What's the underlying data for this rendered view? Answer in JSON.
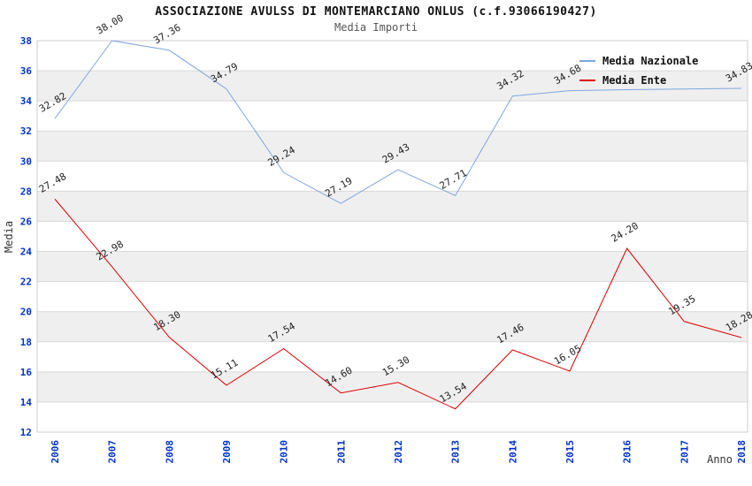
{
  "header": {
    "title": "ASSOCIAZIONE AVULSS DI MONTEMARCIANO ONLUS (c.f.93066190427)",
    "subtitle": "Media Importi"
  },
  "legend": {
    "items": [
      {
        "label": "Media Nazionale",
        "color": "#7EA6E0"
      },
      {
        "label": "Media Ente",
        "color": "#DD0000"
      }
    ]
  },
  "chart_data": {
    "type": "line",
    "x": [
      2006,
      2007,
      2008,
      2009,
      2010,
      2011,
      2012,
      2013,
      2014,
      2015,
      2016,
      2017,
      2018
    ],
    "series": [
      {
        "name": "Media Nazionale",
        "color": "#7EA6E0",
        "values": [
          32.82,
          38.0,
          37.36,
          34.79,
          29.24,
          27.19,
          29.43,
          27.71,
          34.32,
          34.68,
          34.74,
          34.79,
          34.83
        ],
        "labels": [
          "32.82",
          "38.00",
          "37.36",
          "34.79",
          "29.24",
          "27.19",
          "29.43",
          "27.71",
          "34.32",
          "34.68",
          "",
          "",
          "34.83"
        ]
      },
      {
        "name": "Media Ente",
        "color": "#DD0000",
        "values": [
          27.48,
          22.98,
          18.3,
          15.11,
          17.54,
          14.6,
          15.3,
          13.54,
          17.46,
          16.05,
          24.2,
          19.35,
          18.28
        ],
        "labels": [
          "27.48",
          "22.98",
          "18.30",
          "15.11",
          "17.54",
          "14.60",
          "15.30",
          "13.54",
          "17.46",
          "16.05",
          "24.20",
          "19.35",
          "18.28"
        ]
      }
    ],
    "xlabel": "Anno",
    "ylabel": "Media",
    "ylim": [
      12,
      38
    ],
    "ytick_step": 2,
    "legend_position": "top-right",
    "grid": true,
    "styles": {
      "tick_color": "#0033CC",
      "band_color": "#EFEFEF",
      "grid_color": "#D9D9D9",
      "border_color": "#CCCCCC",
      "label_color": "#222222",
      "axis_title_color": "#333333"
    }
  }
}
